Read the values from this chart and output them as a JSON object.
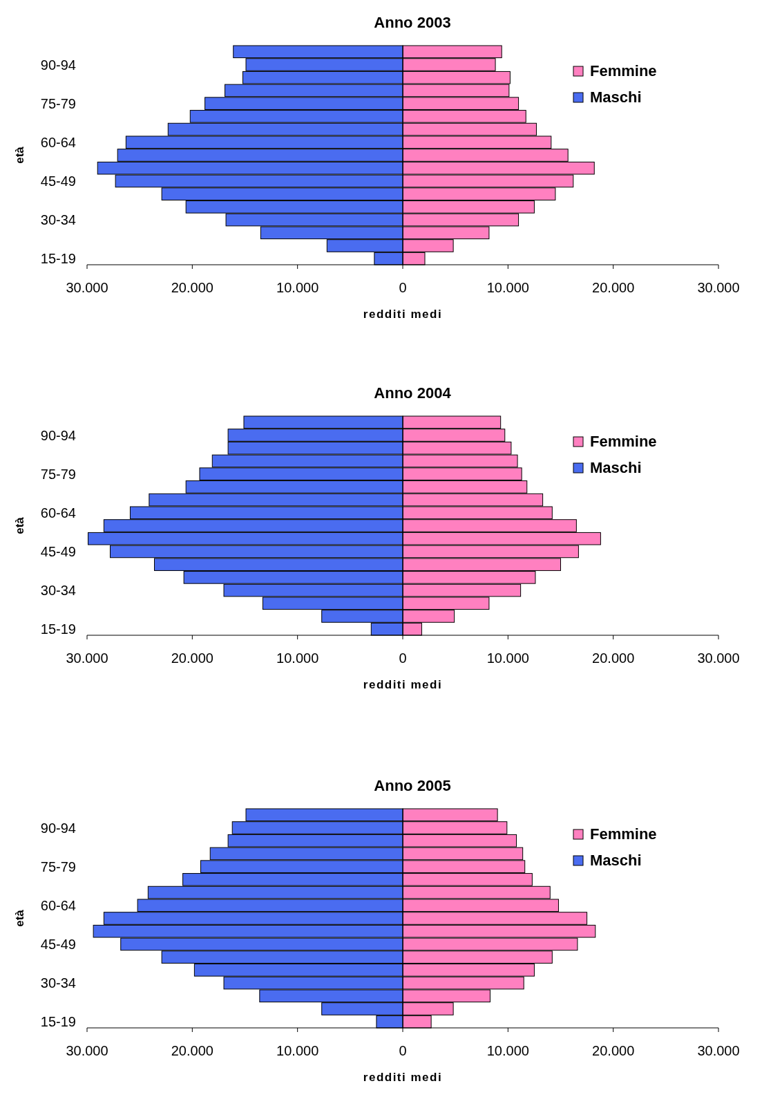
{
  "chart_data": [
    {
      "type": "bar",
      "orientation": "horizontal",
      "stacked": true,
      "title": "Anno 2003",
      "xlabel": "redditi medi",
      "ylabel": "età",
      "legend": "top right",
      "xlim": [
        -30000,
        30000
      ],
      "xticks": [
        {
          "value": -30000,
          "label": "30.000"
        },
        {
          "value": -20000,
          "label": "20.000"
        },
        {
          "value": -10000,
          "label": "10.000"
        },
        {
          "value": 0,
          "label": "0"
        },
        {
          "value": 10000,
          "label": "10.000"
        },
        {
          "value": 20000,
          "label": "20.000"
        },
        {
          "value": 30000,
          "label": "30.000"
        }
      ],
      "categories": [
        null,
        "90-94",
        null,
        null,
        "75-79",
        null,
        null,
        "60-64",
        null,
        null,
        "45-49",
        null,
        null,
        "30-34",
        null,
        null,
        "15-19"
      ],
      "series": [
        {
          "name": "Femmine",
          "color": "#ff80c0",
          "values": [
            9400,
            8800,
            10200,
            10100,
            11000,
            11700,
            12700,
            14100,
            15700,
            18200,
            16200,
            14500,
            12500,
            11000,
            8200,
            4800,
            2100
          ]
        },
        {
          "name": "Maschi",
          "color": "#4a6cf0",
          "values": [
            -16100,
            -14900,
            -15200,
            -16900,
            -18800,
            -20200,
            -22300,
            -26300,
            -27100,
            -29000,
            -27300,
            -22900,
            -20600,
            -16800,
            -13500,
            -7200,
            -2700
          ]
        }
      ]
    },
    {
      "type": "bar",
      "orientation": "horizontal",
      "stacked": true,
      "title": "Anno 2004",
      "xlabel": "redditi medi",
      "ylabel": "età",
      "legend": "top right",
      "xlim": [
        -30000,
        30000
      ],
      "xticks": [
        {
          "value": -30000,
          "label": "30.000"
        },
        {
          "value": -20000,
          "label": "20.000"
        },
        {
          "value": -10000,
          "label": "10.000"
        },
        {
          "value": 0,
          "label": "0"
        },
        {
          "value": 10000,
          "label": "10.000"
        },
        {
          "value": 20000,
          "label": "20.000"
        },
        {
          "value": 30000,
          "label": "30.000"
        }
      ],
      "categories": [
        null,
        "90-94",
        null,
        null,
        "75-79",
        null,
        null,
        "60-64",
        null,
        null,
        "45-49",
        null,
        null,
        "30-34",
        null,
        null,
        "15-19"
      ],
      "series": [
        {
          "name": "Femmine",
          "color": "#ff80c0",
          "values": [
            9300,
            9700,
            10300,
            10900,
            11300,
            11800,
            13300,
            14200,
            16500,
            18800,
            16700,
            15000,
            12600,
            11200,
            8200,
            4900,
            1800
          ]
        },
        {
          "name": "Maschi",
          "color": "#4a6cf0",
          "values": [
            -15100,
            -16600,
            -16600,
            -18100,
            -19300,
            -20600,
            -24100,
            -25900,
            -28400,
            -29900,
            -27800,
            -23600,
            -20800,
            -17000,
            -13300,
            -7700,
            -3000
          ]
        }
      ]
    },
    {
      "type": "bar",
      "orientation": "horizontal",
      "stacked": true,
      "title": "Anno 2005",
      "xlabel": "redditi medi",
      "ylabel": "età",
      "legend": "top right",
      "xlim": [
        -30000,
        30000
      ],
      "xticks": [
        {
          "value": -30000,
          "label": "30.000"
        },
        {
          "value": -20000,
          "label": "20.000"
        },
        {
          "value": -10000,
          "label": "10.000"
        },
        {
          "value": 0,
          "label": "0"
        },
        {
          "value": 10000,
          "label": "10.000"
        },
        {
          "value": 20000,
          "label": "20.000"
        },
        {
          "value": 30000,
          "label": "30.000"
        }
      ],
      "categories": [
        null,
        "90-94",
        null,
        null,
        "75-79",
        null,
        null,
        "60-64",
        null,
        null,
        "45-49",
        null,
        null,
        "30-34",
        null,
        null,
        "15-19"
      ],
      "series": [
        {
          "name": "Femmine",
          "color": "#ff80c0",
          "values": [
            9000,
            9900,
            10800,
            11400,
            11600,
            12300,
            14000,
            14800,
            17500,
            18300,
            16600,
            14200,
            12500,
            11500,
            8300,
            4800,
            2700
          ]
        },
        {
          "name": "Maschi",
          "color": "#4a6cf0",
          "values": [
            -14900,
            -16200,
            -16600,
            -18300,
            -19200,
            -20900,
            -24200,
            -25200,
            -28400,
            -29400,
            -26800,
            -22900,
            -19800,
            -17000,
            -13600,
            -7700,
            -2500
          ]
        }
      ]
    }
  ]
}
